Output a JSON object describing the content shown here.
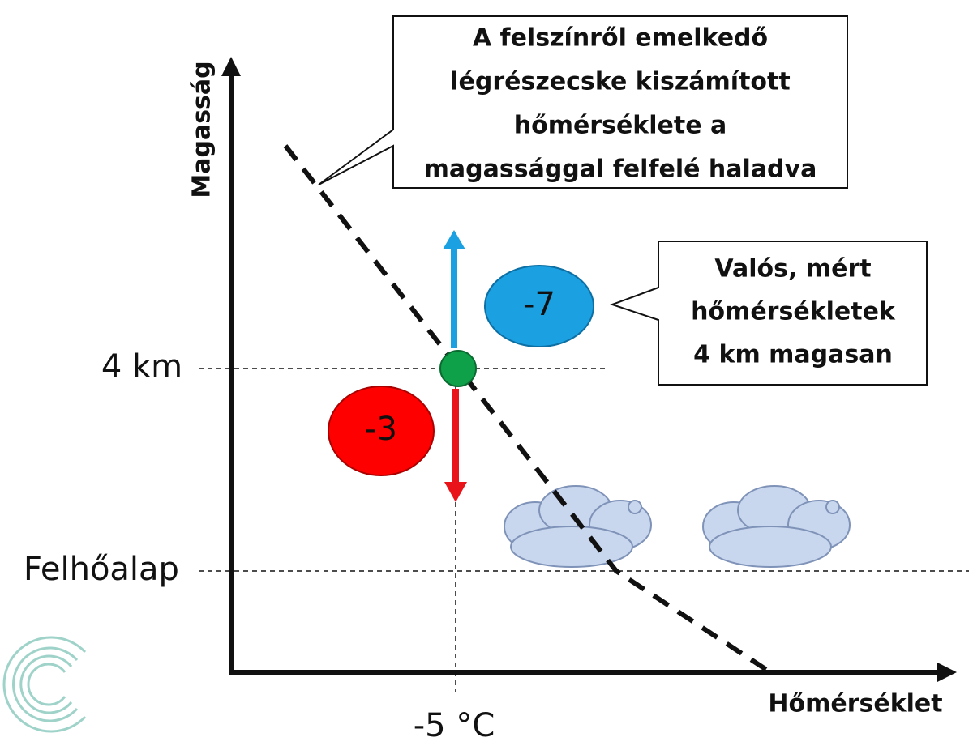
{
  "axes": {
    "y_label": "Magasság",
    "x_label": "Hőmérséklet"
  },
  "levels": {
    "height": "4 km",
    "cloud_base": "Felhőalap",
    "temperature": "-5 °C"
  },
  "bubbles": {
    "warm": "-3",
    "cold": "-7"
  },
  "callouts": [
    {
      "lines": [
        "A felszínről emelkedő",
        "légrészecske kiszámított",
        "hőmérséklete a",
        "magassággal felfelé haladva"
      ]
    },
    {
      "lines": [
        "Valós, mért",
        "hőmérsékletek",
        "4 km magasan"
      ]
    }
  ]
}
